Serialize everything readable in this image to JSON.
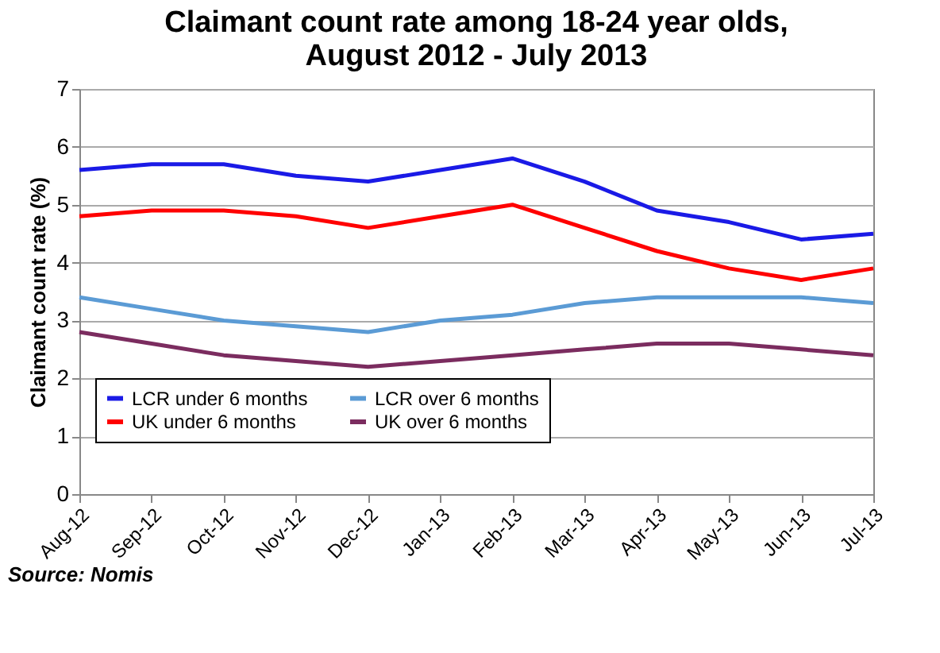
{
  "chart_data": {
    "type": "line",
    "title": "Claimant count rate among 18-24 year olds,\nAugust 2012 - July 2013",
    "ylabel": "Claimant count rate (%)",
    "categories": [
      "Aug-12",
      "Sep-12",
      "Oct-12",
      "Nov-12",
      "Dec-12",
      "Jan-13",
      "Feb-13",
      "Mar-13",
      "Apr-13",
      "May-13",
      "Jun-13",
      "Jul-13"
    ],
    "series": [
      {
        "name": "LCR under 6 months",
        "color": "#1a1ae6",
        "values": [
          5.6,
          5.7,
          5.7,
          5.5,
          5.4,
          5.6,
          5.8,
          5.4,
          4.9,
          4.7,
          4.4,
          4.5
        ]
      },
      {
        "name": "UK under 6 months",
        "color": "#ff0000",
        "values": [
          4.8,
          4.9,
          4.9,
          4.8,
          4.6,
          4.8,
          5.0,
          4.6,
          4.2,
          3.9,
          3.7,
          3.9
        ]
      },
      {
        "name": "LCR over 6 months",
        "color": "#5b9bd5",
        "values": [
          3.4,
          3.2,
          3.0,
          2.9,
          2.8,
          3.0,
          3.1,
          3.3,
          3.4,
          3.4,
          3.4,
          3.3
        ]
      },
      {
        "name": "UK over 6 months",
        "color": "#7b2c5f",
        "values": [
          2.8,
          2.6,
          2.4,
          2.3,
          2.2,
          2.3,
          2.4,
          2.5,
          2.6,
          2.6,
          2.5,
          2.4
        ]
      }
    ],
    "ylim": [
      0,
      7
    ],
    "yticks": [
      0,
      1,
      2,
      3,
      4,
      5,
      6,
      7
    ],
    "grid": "y",
    "legend": "bottom left",
    "marker": "none",
    "line_style": "solid",
    "annotations": [
      "Source: Nomis"
    ]
  }
}
